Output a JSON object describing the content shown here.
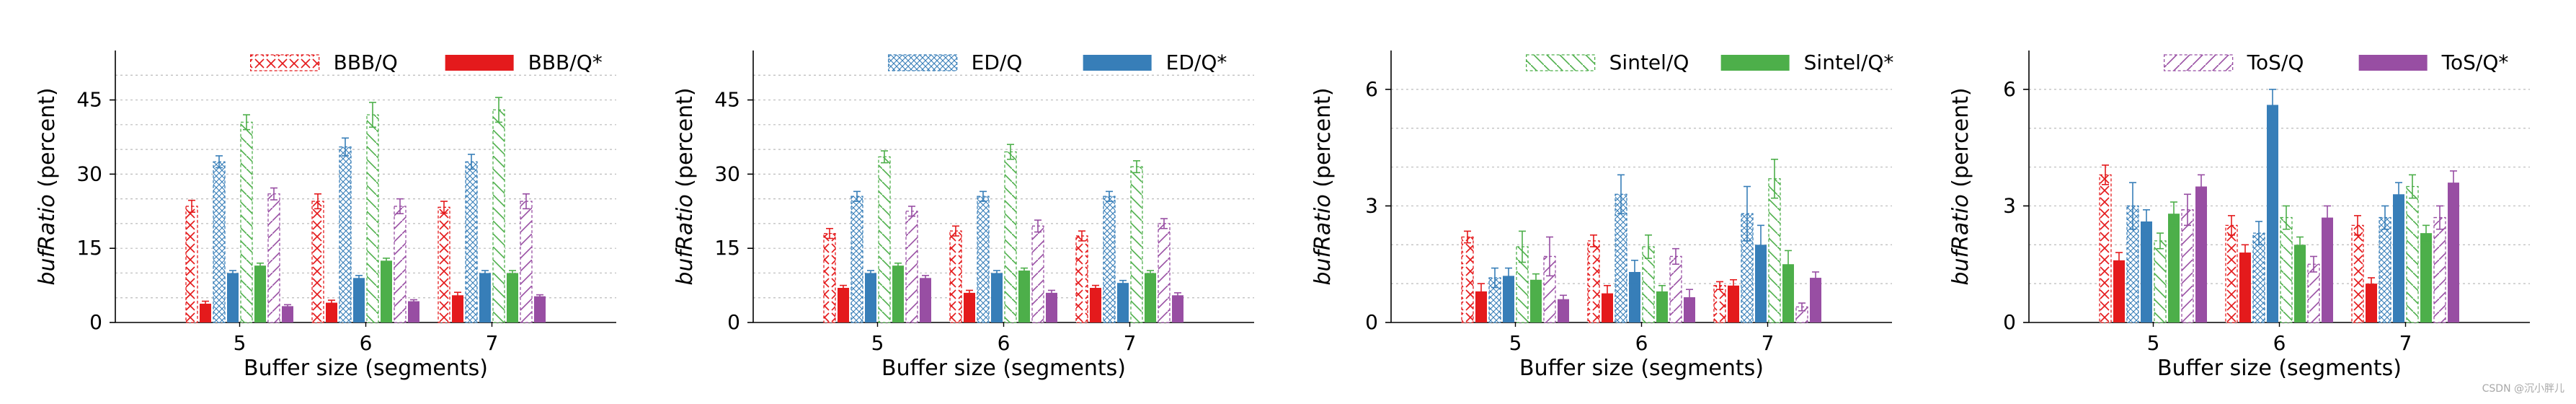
{
  "watermark": "CSDN @沉小胖儿",
  "colors": {
    "red": "#e41a1c",
    "blue": "#377eb8",
    "green": "#4daf4a",
    "purple": "#984ea3",
    "grid": "#bbbbbb",
    "axis": "#000000"
  },
  "chart_data": [
    {
      "type": "bar",
      "id": "bbb",
      "xlabel": "Buffer size (segments)",
      "ylabel_italic": "bufRatio",
      "ylabel_rest": " (percent)",
      "ylim": [
        0,
        55
      ],
      "yticks": [
        0,
        15,
        30,
        45
      ],
      "categories": [
        "5",
        "6",
        "7"
      ],
      "legend": [
        {
          "label": "BBB/Q",
          "style": "hatched"
        },
        {
          "label": "BBB/Q*",
          "style": "solid"
        }
      ],
      "series": [
        {
          "name": "red/Q",
          "color": "red",
          "style": "hatched",
          "hatch": "x",
          "values": [
            23.5,
            24.5,
            23.3
          ],
          "errors": [
            1.2,
            1.5,
            1.2
          ]
        },
        {
          "name": "red/Q*",
          "color": "red",
          "style": "solid",
          "values": [
            3.8,
            4.0,
            5.5
          ],
          "errors": [
            0.5,
            0.5,
            0.6
          ]
        },
        {
          "name": "blue/Q",
          "color": "blue",
          "style": "hatched",
          "hatch": "xx",
          "values": [
            32.5,
            35.5,
            32.5
          ],
          "errors": [
            1.2,
            1.8,
            1.5
          ]
        },
        {
          "name": "blue/Q*",
          "color": "blue",
          "style": "solid",
          "values": [
            10.0,
            9.0,
            10.0
          ],
          "errors": [
            0.5,
            0.5,
            0.5
          ]
        },
        {
          "name": "green/Q",
          "color": "green",
          "style": "hatched",
          "hatch": "\\",
          "values": [
            40.5,
            42.0,
            43.0
          ],
          "errors": [
            1.5,
            2.5,
            2.5
          ]
        },
        {
          "name": "green/Q*",
          "color": "green",
          "style": "solid",
          "values": [
            11.5,
            12.5,
            10.0
          ],
          "errors": [
            0.5,
            0.5,
            0.5
          ]
        },
        {
          "name": "purple/Q",
          "color": "purple",
          "style": "hatched",
          "hatch": "/",
          "values": [
            26.0,
            23.5,
            24.5
          ],
          "errors": [
            1.2,
            1.5,
            1.5
          ]
        },
        {
          "name": "purple/Q*",
          "color": "purple",
          "style": "solid",
          "values": [
            3.3,
            4.3,
            5.3
          ],
          "errors": [
            0.3,
            0.3,
            0.3
          ]
        }
      ]
    },
    {
      "type": "bar",
      "id": "ed",
      "xlabel": "Buffer size (segments)",
      "ylabel_italic": "bufRatio",
      "ylabel_rest": " (percent)",
      "ylim": [
        0,
        55
      ],
      "yticks": [
        0,
        15,
        30,
        45
      ],
      "categories": [
        "5",
        "6",
        "7"
      ],
      "legend": [
        {
          "label": "ED/Q",
          "style": "hatched"
        },
        {
          "label": "ED/Q*",
          "style": "solid"
        }
      ],
      "series": [
        {
          "name": "red/Q",
          "color": "red",
          "style": "hatched",
          "hatch": "x",
          "values": [
            18.0,
            18.5,
            17.5
          ],
          "errors": [
            1.0,
            1.0,
            1.0
          ]
        },
        {
          "name": "red/Q*",
          "color": "red",
          "style": "solid",
          "values": [
            7.0,
            6.0,
            7.0
          ],
          "errors": [
            0.5,
            0.5,
            0.5
          ]
        },
        {
          "name": "blue/Q",
          "color": "blue",
          "style": "hatched",
          "hatch": "xx",
          "values": [
            25.5,
            25.5,
            25.5
          ],
          "errors": [
            1.0,
            1.0,
            1.0
          ]
        },
        {
          "name": "blue/Q*",
          "color": "blue",
          "style": "solid",
          "values": [
            10.0,
            10.0,
            8.0
          ],
          "errors": [
            0.5,
            0.5,
            0.5
          ]
        },
        {
          "name": "green/Q",
          "color": "green",
          "style": "hatched",
          "hatch": "\\",
          "values": [
            33.5,
            34.5,
            31.5
          ],
          "errors": [
            1.2,
            1.5,
            1.2
          ]
        },
        {
          "name": "green/Q*",
          "color": "green",
          "style": "solid",
          "values": [
            11.5,
            10.5,
            10.0
          ],
          "errors": [
            0.5,
            0.5,
            0.5
          ]
        },
        {
          "name": "purple/Q",
          "color": "purple",
          "style": "hatched",
          "hatch": "/",
          "values": [
            22.5,
            19.5,
            20.0
          ],
          "errors": [
            1.0,
            1.2,
            1.0
          ]
        },
        {
          "name": "purple/Q*",
          "color": "purple",
          "style": "solid",
          "values": [
            9.0,
            6.0,
            5.5
          ],
          "errors": [
            0.5,
            0.5,
            0.5
          ]
        }
      ]
    },
    {
      "type": "bar",
      "id": "sintel",
      "xlabel": "Buffer size (segments)",
      "ylabel_italic": "bufRatio",
      "ylabel_rest": " (percent)",
      "ylim": [
        0,
        7
      ],
      "yticks": [
        0,
        3,
        6
      ],
      "categories": [
        "5",
        "6",
        "7"
      ],
      "legend": [
        {
          "label": "Sintel/Q",
          "style": "hatched"
        },
        {
          "label": "Sintel/Q*",
          "style": "solid"
        }
      ],
      "series": [
        {
          "name": "red/Q",
          "color": "red",
          "style": "hatched",
          "hatch": "x",
          "values": [
            2.2,
            2.1,
            0.95
          ],
          "errors": [
            0.15,
            0.15,
            0.1
          ]
        },
        {
          "name": "red/Q*",
          "color": "red",
          "style": "solid",
          "values": [
            0.8,
            0.75,
            0.95
          ],
          "errors": [
            0.2,
            0.2,
            0.15
          ]
        },
        {
          "name": "blue/Q",
          "color": "blue",
          "style": "hatched",
          "hatch": "xx",
          "values": [
            1.15,
            3.3,
            2.8
          ],
          "errors": [
            0.25,
            0.5,
            0.7
          ]
        },
        {
          "name": "blue/Q*",
          "color": "blue",
          "style": "solid",
          "values": [
            1.2,
            1.3,
            2.0
          ],
          "errors": [
            0.2,
            0.3,
            0.5
          ]
        },
        {
          "name": "green/Q",
          "color": "green",
          "style": "hatched",
          "hatch": "\\",
          "values": [
            1.95,
            1.95,
            3.7
          ],
          "errors": [
            0.4,
            0.3,
            0.5
          ]
        },
        {
          "name": "green/Q*",
          "color": "green",
          "style": "solid",
          "values": [
            1.1,
            0.8,
            1.5
          ],
          "errors": [
            0.15,
            0.15,
            0.35
          ]
        },
        {
          "name": "purple/Q",
          "color": "purple",
          "style": "hatched",
          "hatch": "/",
          "values": [
            1.7,
            1.7,
            0.4
          ],
          "errors": [
            0.5,
            0.2,
            0.1
          ]
        },
        {
          "name": "purple/Q*",
          "color": "purple",
          "style": "solid",
          "values": [
            0.6,
            0.65,
            1.15
          ],
          "errors": [
            0.1,
            0.2,
            0.15
          ]
        }
      ]
    },
    {
      "type": "bar",
      "id": "tos",
      "xlabel": "Buffer size (segments)",
      "ylabel_italic": "bufRatio",
      "ylabel_rest": " (percent)",
      "ylim": [
        0,
        7
      ],
      "yticks": [
        0,
        3,
        6
      ],
      "categories": [
        "5",
        "6",
        "7"
      ],
      "legend": [
        {
          "label": "ToS/Q",
          "style": "hatched"
        },
        {
          "label": "ToS/Q*",
          "style": "solid"
        }
      ],
      "series": [
        {
          "name": "red/Q",
          "color": "red",
          "style": "hatched",
          "hatch": "x",
          "values": [
            3.8,
            2.5,
            2.5
          ],
          "errors": [
            0.25,
            0.25,
            0.25
          ]
        },
        {
          "name": "red/Q*",
          "color": "red",
          "style": "solid",
          "values": [
            1.6,
            1.8,
            1.0
          ],
          "errors": [
            0.2,
            0.2,
            0.15
          ]
        },
        {
          "name": "blue/Q",
          "color": "blue",
          "style": "hatched",
          "hatch": "xx",
          "values": [
            3.0,
            2.3,
            2.7
          ],
          "errors": [
            0.6,
            0.3,
            0.3
          ]
        },
        {
          "name": "blue/Q*",
          "color": "blue",
          "style": "solid",
          "values": [
            2.6,
            5.6,
            3.3
          ],
          "errors": [
            0.3,
            0.4,
            0.3
          ]
        },
        {
          "name": "green/Q",
          "color": "green",
          "style": "hatched",
          "hatch": "\\",
          "values": [
            2.1,
            2.7,
            3.5
          ],
          "errors": [
            0.2,
            0.3,
            0.3
          ]
        },
        {
          "name": "green/Q*",
          "color": "green",
          "style": "solid",
          "values": [
            2.8,
            2.0,
            2.3
          ],
          "errors": [
            0.3,
            0.2,
            0.2
          ]
        },
        {
          "name": "purple/Q",
          "color": "purple",
          "style": "hatched",
          "hatch": "/",
          "values": [
            2.9,
            1.5,
            2.7
          ],
          "errors": [
            0.4,
            0.2,
            0.3
          ]
        },
        {
          "name": "purple/Q*",
          "color": "purple",
          "style": "solid",
          "values": [
            3.5,
            2.7,
            3.6
          ],
          "errors": [
            0.3,
            0.3,
            0.3
          ]
        }
      ]
    }
  ]
}
